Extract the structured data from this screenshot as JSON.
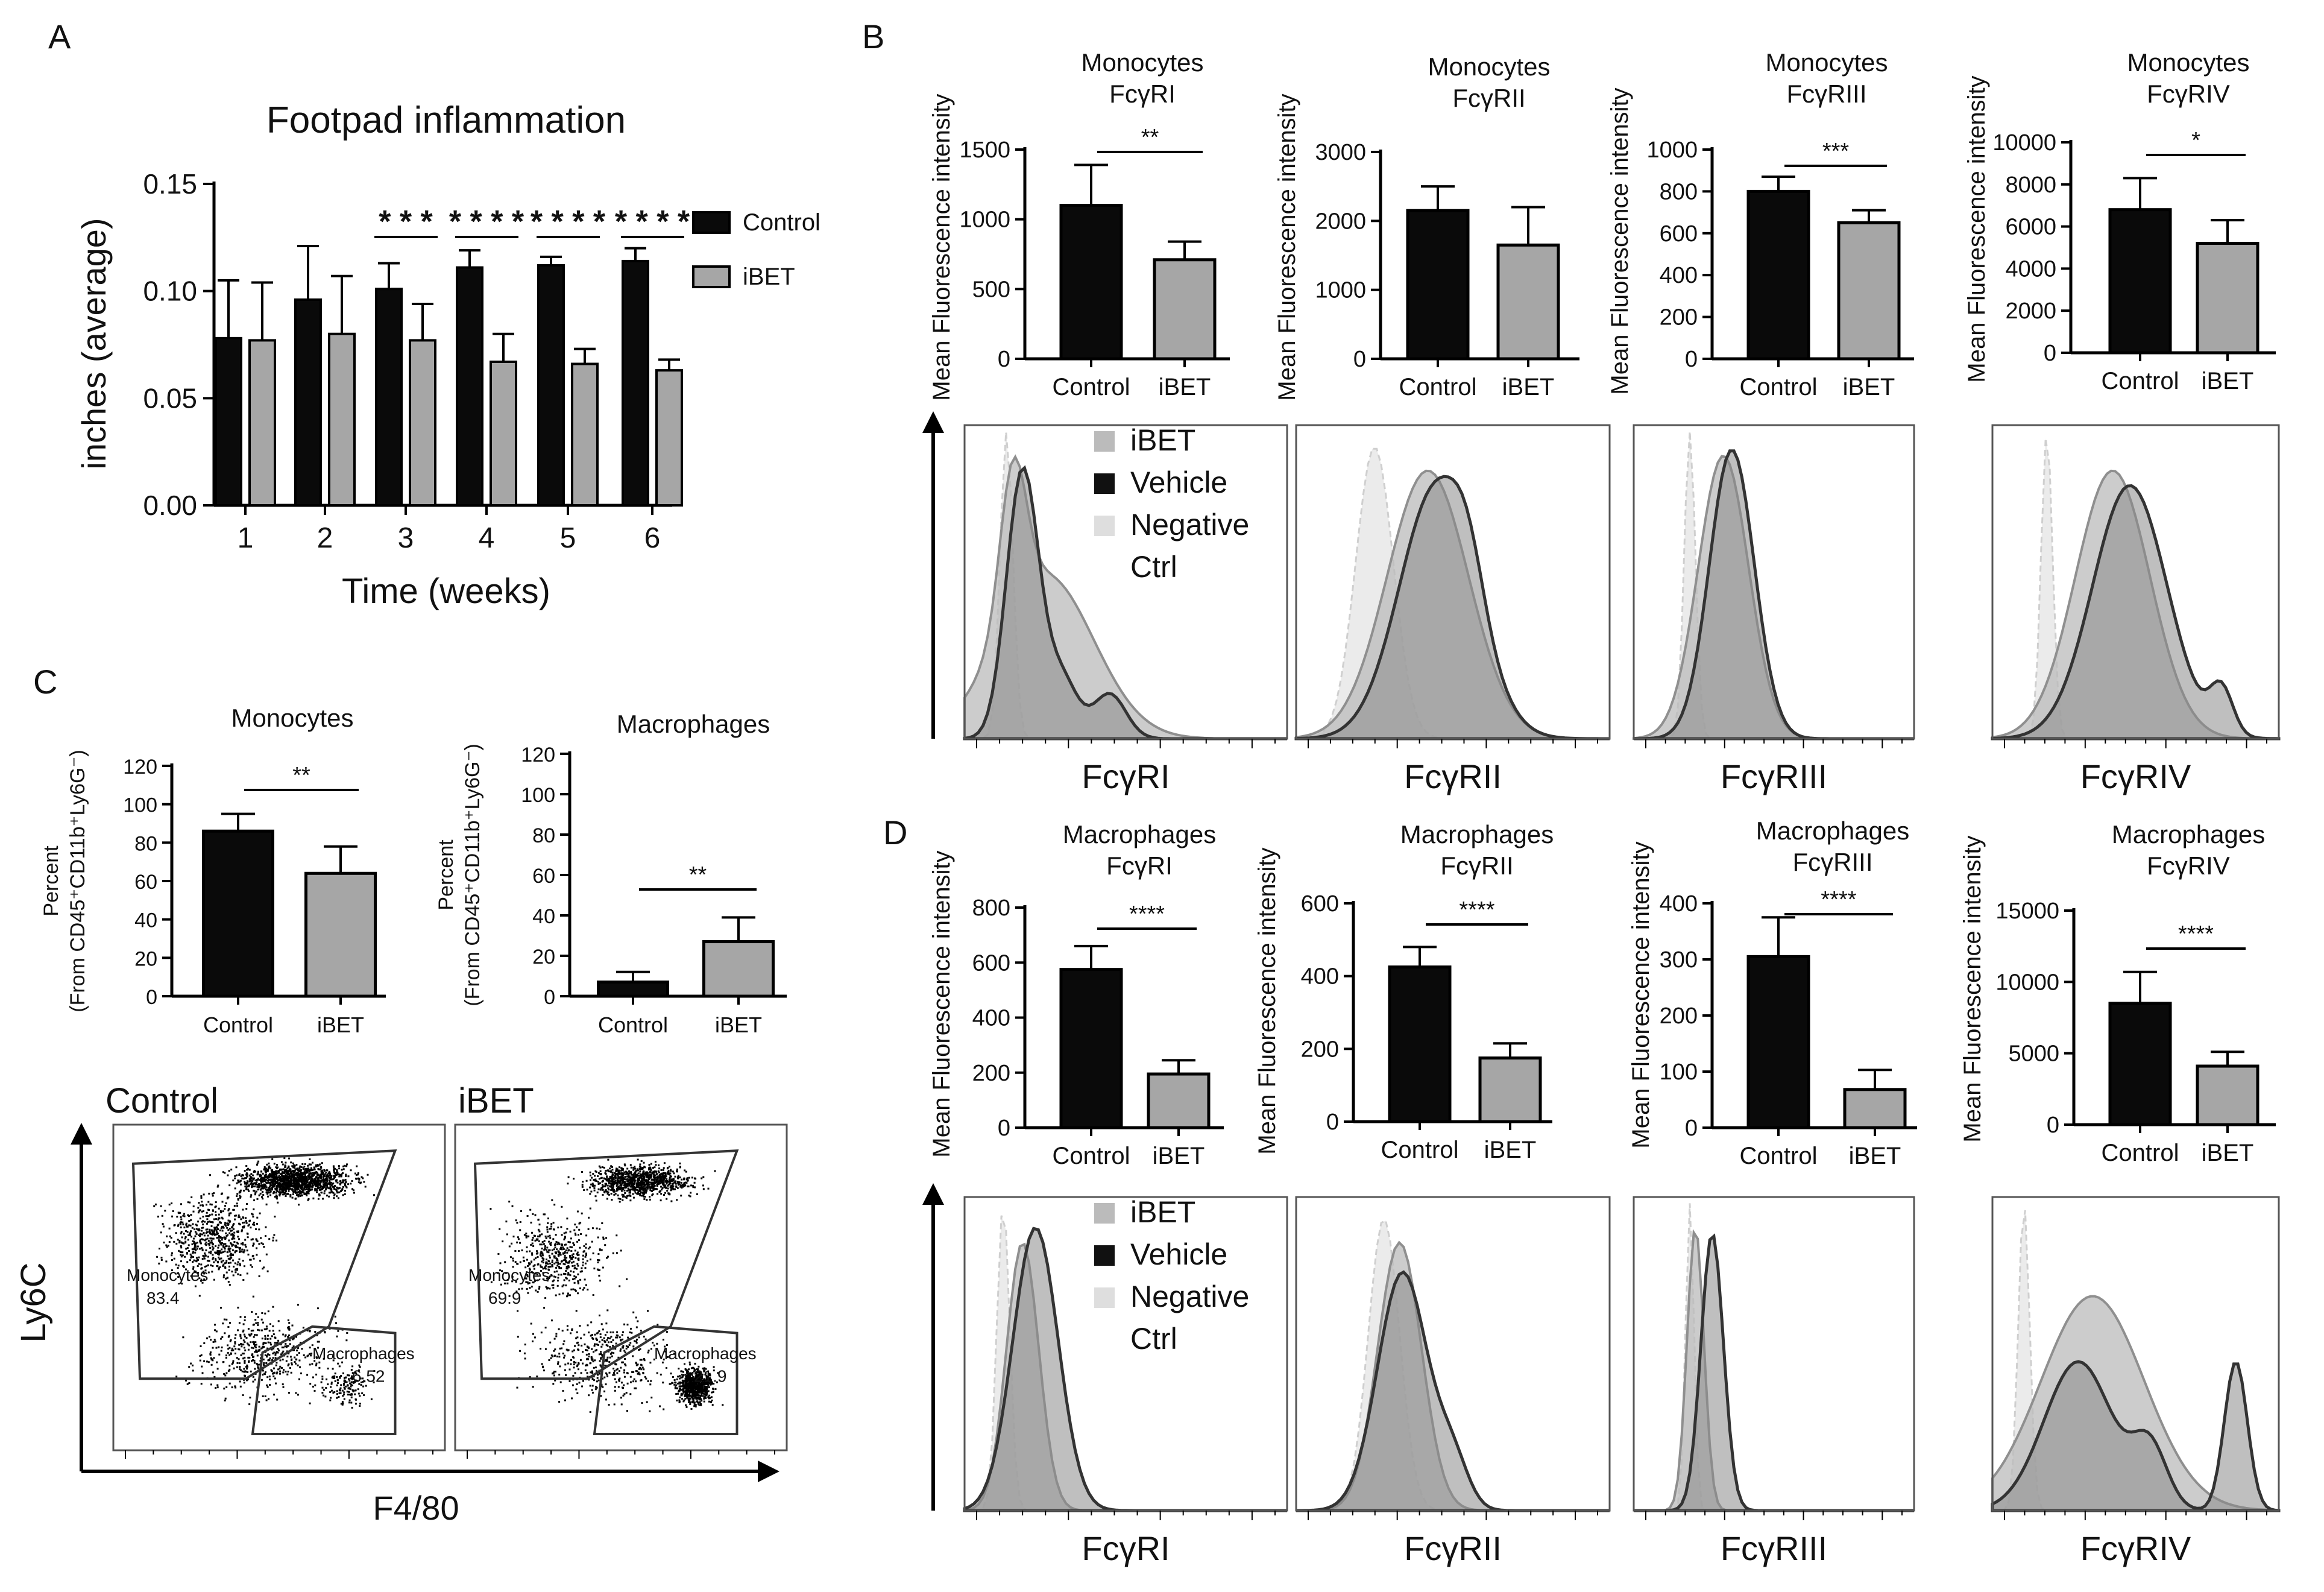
{
  "colors": {
    "control": "#0a0a0a",
    "ibet": "#a6a6a6",
    "vehicle_hist": "#333333",
    "ibet_hist": "#bbbbbb",
    "negative_hist": "#dedede"
  },
  "panels": {
    "A": "A",
    "B": "B",
    "C": "C",
    "D": "D"
  },
  "chart_data": [
    {
      "id": "A",
      "type": "bar",
      "title": "Footpad inflammation",
      "xlabel": "Time (weeks)",
      "ylabel": "inches (average)",
      "ylim": [
        0,
        0.15
      ],
      "yticks": [
        "0.00",
        "0.05",
        "0.10",
        "0.15"
      ],
      "categories": [
        "1",
        "2",
        "3",
        "4",
        "5",
        "6"
      ],
      "legend": [
        "Control",
        "iBET"
      ],
      "series": [
        {
          "name": "Control",
          "values": [
            0.078,
            0.096,
            0.101,
            0.111,
            0.112,
            0.114
          ],
          "errors": [
            0.027,
            0.025,
            0.012,
            0.008,
            0.004,
            0.006
          ]
        },
        {
          "name": "iBET",
          "values": [
            0.077,
            0.08,
            0.077,
            0.067,
            0.066,
            0.063
          ],
          "errors": [
            0.027,
            0.027,
            0.017,
            0.013,
            0.007,
            0.005
          ]
        }
      ],
      "significance": [
        "",
        "",
        "***",
        "****",
        "****",
        "****"
      ]
    },
    {
      "id": "B1",
      "type": "bar",
      "title": [
        "Monocytes",
        "FcγRI"
      ],
      "ylabel": "Mean Fluorescence intensity",
      "ylim": [
        0,
        1500
      ],
      "yticks": [
        "0",
        "500",
        "1000",
        "1500"
      ],
      "categories": [
        "Control",
        "iBET"
      ],
      "values": [
        1100,
        710
      ],
      "errors": [
        290,
        130
      ],
      "significance": "**"
    },
    {
      "id": "B2",
      "type": "bar",
      "title": [
        "Monocytes",
        "FcγRII"
      ],
      "ylabel": "Mean Fluorescence intensity",
      "ylim": [
        0,
        3000
      ],
      "yticks": [
        "0",
        "1000",
        "2000",
        "3000"
      ],
      "categories": [
        "Control",
        "iBET"
      ],
      "values": [
        2150,
        1650
      ],
      "errors": [
        350,
        550
      ],
      "significance": ""
    },
    {
      "id": "B3",
      "type": "bar",
      "title": [
        "Monocytes",
        "FcγRIII"
      ],
      "ylabel": "Mean Fluorescence intensity",
      "ylim": [
        0,
        1000
      ],
      "yticks": [
        "0",
        "200",
        "400",
        "600",
        "800",
        "1000"
      ],
      "categories": [
        "Control",
        "iBET"
      ],
      "values": [
        800,
        650
      ],
      "errors": [
        70,
        60
      ],
      "significance": "***"
    },
    {
      "id": "B4",
      "type": "bar",
      "title": [
        "Monocytes",
        "FcγRIV"
      ],
      "ylabel": "Mean Fluorescence intensity",
      "ylim": [
        0,
        10000
      ],
      "yticks": [
        "0",
        "2000",
        "4000",
        "6000",
        "8000",
        "10000"
      ],
      "categories": [
        "Control",
        "iBET"
      ],
      "values": [
        6800,
        5200
      ],
      "errors": [
        1500,
        1100
      ],
      "significance": "*"
    },
    {
      "id": "C1",
      "type": "bar",
      "title": [
        "Monocytes"
      ],
      "ylabel": "Percent",
      "ylabel2": "(From CD45⁺CD11b⁺Ly6G⁻)",
      "ylim": [
        0,
        120
      ],
      "yticks": [
        "0",
        "20",
        "40",
        "60",
        "80",
        "100",
        "120"
      ],
      "categories": [
        "Control",
        "iBET"
      ],
      "values": [
        86,
        64
      ],
      "errors": [
        9,
        14
      ],
      "significance": "**"
    },
    {
      "id": "C2",
      "type": "bar",
      "title": [
        "Macrophages"
      ],
      "ylabel": "Percent",
      "ylabel2": "(From CD45⁺CD11b⁺Ly6G⁻)",
      "ylim": [
        0,
        120
      ],
      "yticks": [
        "0",
        "20",
        "40",
        "60",
        "80",
        "100",
        "120"
      ],
      "categories": [
        "Control",
        "iBET"
      ],
      "values": [
        7,
        27
      ],
      "errors": [
        5,
        12
      ],
      "significance": "**"
    },
    {
      "id": "D1",
      "type": "bar",
      "title": [
        "Macrophages",
        "FcγRI"
      ],
      "ylabel": "Mean Fluorescence intensity",
      "ylim": [
        0,
        800
      ],
      "yticks": [
        "0",
        "200",
        "400",
        "600",
        "800"
      ],
      "categories": [
        "Control",
        "iBET"
      ],
      "values": [
        575,
        195
      ],
      "errors": [
        85,
        50
      ],
      "significance": "****"
    },
    {
      "id": "D2",
      "type": "bar",
      "title": [
        "Macrophages",
        "FcγRII"
      ],
      "ylabel": "Mean Fluorescence intensity",
      "ylim": [
        0,
        600
      ],
      "yticks": [
        "0",
        "200",
        "400",
        "600"
      ],
      "categories": [
        "Control",
        "iBET"
      ],
      "values": [
        425,
        175
      ],
      "errors": [
        55,
        40
      ],
      "significance": "****"
    },
    {
      "id": "D3",
      "type": "bar",
      "title": [
        "Macrophages",
        "FcγRIII"
      ],
      "ylabel": "Mean Fluorescence intensity",
      "ylim": [
        0,
        400
      ],
      "yticks": [
        "0",
        "100",
        "200",
        "300",
        "400"
      ],
      "categories": [
        "Control",
        "iBET"
      ],
      "values": [
        305,
        68
      ],
      "errors": [
        70,
        35
      ],
      "significance": "****"
    },
    {
      "id": "D4",
      "type": "bar",
      "title": [
        "Macrophages",
        "FcγRIV"
      ],
      "ylabel": "Mean Fluorescence intensity",
      "ylim": [
        0,
        15000
      ],
      "yticks": [
        "0",
        "5000",
        "10000",
        "15000"
      ],
      "categories": [
        "Control",
        "iBET"
      ],
      "values": [
        8500,
        4100
      ],
      "errors": [
        2200,
        1000
      ],
      "significance": "****"
    }
  ],
  "histograms": {
    "legend": [
      "iBET",
      "Vehicle",
      "Negative",
      "Ctrl"
    ],
    "monocyte_xlabels": [
      "FcγRI",
      "FcγRII",
      "FcγRIII",
      "FcγRIV"
    ],
    "macrophage_xlabels": [
      "FcγRI",
      "FcγRII",
      "FcγRIII",
      "FcγRIV"
    ]
  },
  "scatter": {
    "titles": [
      "Control",
      "iBET"
    ],
    "xlabel": "F4/80",
    "ylabel": "Ly6C",
    "gates": [
      {
        "monocytes_label": "Monocytes",
        "monocytes_value": "83.4",
        "macrophages_label": "Macrophages",
        "macrophages_value": "6.52"
      },
      {
        "monocytes_label": "Monocytes",
        "monocytes_value": "69.9",
        "macrophages_label": "Macrophages",
        "macrophages_value": "21.9"
      }
    ]
  }
}
